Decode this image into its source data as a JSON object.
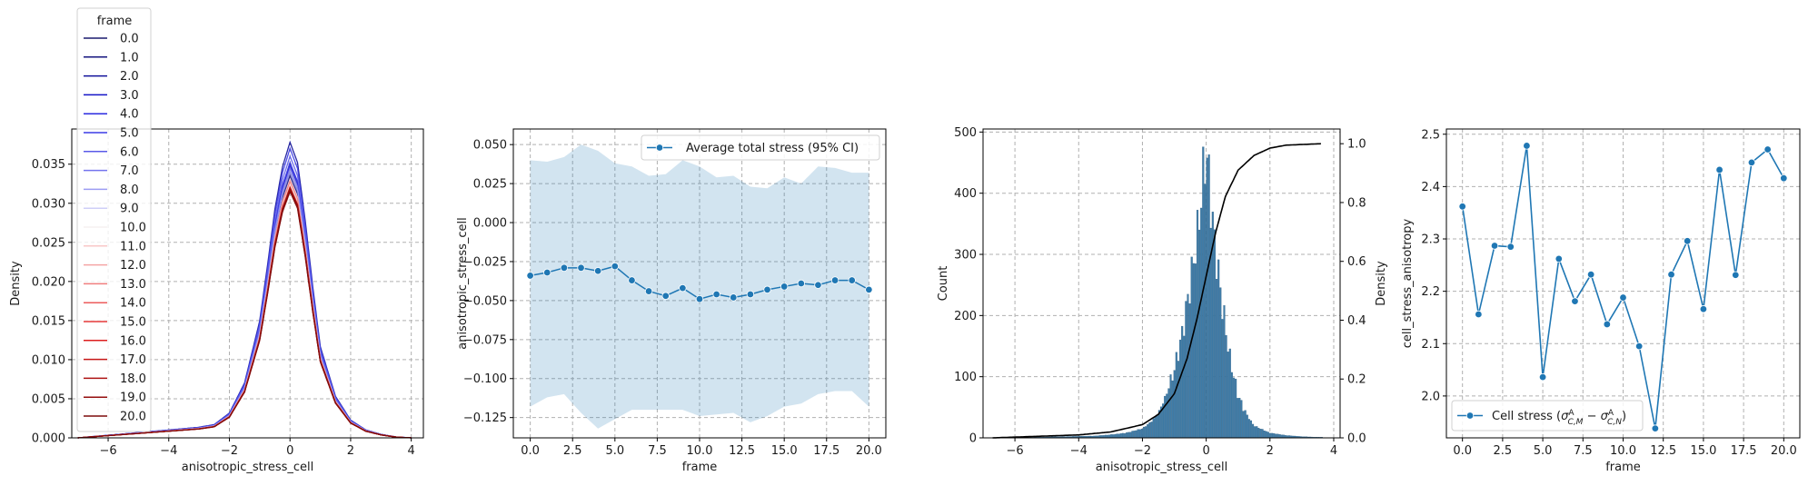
{
  "chart_data": [
    {
      "type": "line",
      "xlabel": "anisotropic_stress_cell",
      "ylabel": "Density",
      "xlim": [
        -7.2,
        4.4
      ],
      "ylim": [
        0,
        0.0395
      ],
      "xticks": [
        -6,
        -4,
        -2,
        0,
        2,
        4
      ],
      "xtick_labels": [
        "−6",
        "−4",
        "−2",
        "0",
        "2",
        "4"
      ],
      "yticks": [
        0,
        0.005,
        0.01,
        0.015,
        0.02,
        0.025,
        0.03,
        0.035
      ],
      "ytick_labels": [
        "0.000",
        "0.005",
        "0.010",
        "0.015",
        "0.020",
        "0.025",
        "0.030",
        "0.035"
      ],
      "grid": true,
      "legend_title": "frame",
      "legend_placement": "upper-left, above axes",
      "density_profile": {
        "x": [
          -7.0,
          -6.0,
          -5.0,
          -4.0,
          -3.0,
          -2.5,
          -2.0,
          -1.5,
          -1.0,
          -0.75,
          -0.5,
          -0.25,
          0.0,
          0.25,
          0.5,
          0.75,
          1.0,
          1.5,
          2.0,
          2.5,
          3.0,
          3.5,
          4.0
        ],
        "y": [
          0.0,
          0.0003,
          0.0006,
          0.0009,
          0.0012,
          0.0015,
          0.0028,
          0.0062,
          0.0132,
          0.0193,
          0.0258,
          0.0306,
          0.0334,
          0.0311,
          0.0246,
          0.0171,
          0.0103,
          0.0047,
          0.002,
          0.0009,
          0.0004,
          0.0001,
          0.0
        ]
      },
      "series": [
        {
          "name": "0.0",
          "color": "#1a1a6e",
          "peak": 0.034
        },
        {
          "name": "1.0",
          "color": "#15157f",
          "peak": 0.0335
        },
        {
          "name": "2.0",
          "color": "#10109a",
          "peak": 0.0378
        },
        {
          "name": "3.0",
          "color": "#1515c8",
          "peak": 0.0348
        },
        {
          "name": "4.0",
          "color": "#2a2ae0",
          "peak": 0.0352
        },
        {
          "name": "5.0",
          "color": "#3b3be6",
          "peak": 0.037
        },
        {
          "name": "6.0",
          "color": "#5a5ae8",
          "peak": 0.036
        },
        {
          "name": "7.0",
          "color": "#7474ee",
          "peak": 0.0345
        },
        {
          "name": "8.0",
          "color": "#9c9cf3",
          "peak": 0.034
        },
        {
          "name": "9.0",
          "color": "#cfcff8",
          "peak": 0.033
        },
        {
          "name": "10.0",
          "color": "#f6f0f0",
          "peak": 0.0325
        },
        {
          "name": "11.0",
          "color": "#f9c7c7",
          "peak": 0.033
        },
        {
          "name": "12.0",
          "color": "#f4a4a4",
          "peak": 0.0322
        },
        {
          "name": "13.0",
          "color": "#f07e7e",
          "peak": 0.0328
        },
        {
          "name": "14.0",
          "color": "#ec5b5b",
          "peak": 0.032
        },
        {
          "name": "15.0",
          "color": "#e63a3a",
          "peak": 0.0318
        },
        {
          "name": "16.0",
          "color": "#dd1f1f",
          "peak": 0.032
        },
        {
          "name": "17.0",
          "color": "#c61616",
          "peak": 0.0316
        },
        {
          "name": "18.0",
          "color": "#ad1111",
          "peak": 0.032
        },
        {
          "name": "19.0",
          "color": "#950e0e",
          "peak": 0.0318
        },
        {
          "name": "20.0",
          "color": "#7d0b0b",
          "peak": 0.0315
        }
      ]
    },
    {
      "type": "line",
      "xlabel": "frame",
      "ylabel": "anisotropic_stress_cell",
      "xlim": [
        -1,
        21
      ],
      "ylim": [
        -0.138,
        0.06
      ],
      "xticks": [
        0,
        2.5,
        5,
        7.5,
        10,
        12.5,
        15,
        17.5,
        20
      ],
      "xtick_labels": [
        "0.0",
        "2.5",
        "5.0",
        "7.5",
        "10.0",
        "12.5",
        "15.0",
        "17.5",
        "20.0"
      ],
      "yticks": [
        -0.125,
        -0.1,
        -0.075,
        -0.05,
        -0.025,
        0.0,
        0.025,
        0.05
      ],
      "ytick_labels": [
        "−0.125",
        "−0.100",
        "−0.075",
        "−0.050",
        "−0.025",
        "0.000",
        "0.025",
        "0.050"
      ],
      "grid": true,
      "legend_placement": "upper-right",
      "series": [
        {
          "name": "Average total stress (95% CI)",
          "color": "#1f77b4",
          "x": [
            0,
            1,
            2,
            3,
            4,
            5,
            6,
            7,
            8,
            9,
            10,
            11,
            12,
            13,
            14,
            15,
            16,
            17,
            18,
            19,
            20
          ],
          "y": [
            -0.034,
            -0.032,
            -0.029,
            -0.029,
            -0.031,
            -0.028,
            -0.037,
            -0.044,
            -0.047,
            -0.042,
            -0.049,
            -0.046,
            -0.048,
            -0.046,
            -0.043,
            -0.041,
            -0.039,
            -0.04,
            -0.037,
            -0.037,
            -0.043
          ],
          "ci_low": [
            -0.118,
            -0.112,
            -0.11,
            -0.122,
            -0.132,
            -0.126,
            -0.12,
            -0.12,
            -0.12,
            -0.12,
            -0.124,
            -0.123,
            -0.122,
            -0.128,
            -0.124,
            -0.118,
            -0.116,
            -0.11,
            -0.108,
            -0.108,
            -0.118
          ],
          "ci_high": [
            0.04,
            0.039,
            0.042,
            0.05,
            0.046,
            0.038,
            0.036,
            0.03,
            0.031,
            0.04,
            0.036,
            0.029,
            0.03,
            0.023,
            0.022,
            0.029,
            0.025,
            0.036,
            0.035,
            0.032,
            0.032
          ]
        }
      ]
    },
    {
      "type": "bar",
      "xlabel": "anisotropic_stress_cell",
      "ylabel": "Count",
      "ylabel_right": "Density",
      "xlim": [
        -7.0,
        4.2
      ],
      "ylim": [
        0,
        505
      ],
      "ylim_right": [
        0,
        1.05
      ],
      "xticks": [
        -6,
        -4,
        -2,
        0,
        2,
        4
      ],
      "xtick_labels": [
        "−6",
        "−4",
        "−2",
        "0",
        "2",
        "4"
      ],
      "yticks": [
        0,
        100,
        200,
        300,
        400,
        500
      ],
      "ytick_labels": [
        "0",
        "100",
        "200",
        "300",
        "400",
        "500"
      ],
      "yticks_right": [
        0,
        0.2,
        0.4,
        0.6,
        0.8,
        1.0
      ],
      "ytick_labels_right": [
        "0.0",
        "0.2",
        "0.4",
        "0.6",
        "0.8",
        "1.0"
      ],
      "grid": true,
      "bar_color": "#3f7ca8",
      "histogram": {
        "x": [
          -6.5,
          -5.5,
          -4.5,
          -3.5,
          -3.0,
          -2.5,
          -2.0,
          -1.75,
          -1.5,
          -1.25,
          -1.0,
          -0.75,
          -0.5,
          -0.25,
          0.0,
          0.25,
          0.5,
          0.75,
          1.0,
          1.25,
          1.5,
          2.0,
          2.5,
          3.0,
          3.5
        ],
        "y": [
          0,
          1,
          2,
          3,
          5,
          8,
          15,
          25,
          40,
          70,
          110,
          170,
          250,
          340,
          475,
          330,
          220,
          130,
          70,
          40,
          20,
          8,
          4,
          2,
          1
        ]
      },
      "cdf_color": "#000000",
      "cdf_points": {
        "x": [
          -6.7,
          -4.0,
          -3.0,
          -2.0,
          -1.5,
          -1.0,
          -0.6,
          -0.3,
          0.0,
          0.3,
          0.6,
          1.0,
          1.5,
          2.0,
          2.5,
          3.6
        ],
        "y": [
          0.0,
          0.01,
          0.02,
          0.045,
          0.08,
          0.15,
          0.27,
          0.4,
          0.55,
          0.7,
          0.82,
          0.91,
          0.96,
          0.985,
          0.995,
          1.0
        ]
      }
    },
    {
      "type": "line",
      "xlabel": "frame",
      "ylabel": "cell_stress_anisotropy",
      "xlim": [
        -1,
        21
      ],
      "ylim": [
        1.92,
        2.51
      ],
      "xticks": [
        0,
        2.5,
        5,
        7.5,
        10,
        12.5,
        15,
        17.5,
        20
      ],
      "xtick_labels": [
        "0.0",
        "2.5",
        "5.0",
        "7.5",
        "10.0",
        "12.5",
        "15.0",
        "17.5",
        "20.0"
      ],
      "yticks": [
        2.0,
        2.1,
        2.2,
        2.3,
        2.4,
        2.5
      ],
      "ytick_labels": [
        "2.0",
        "2.1",
        "2.2",
        "2.3",
        "2.4",
        "2.5"
      ],
      "grid": true,
      "legend_placement": "lower-left",
      "series": [
        {
          "name": "Cell stress (σ^A_{C,M} − σ^A_{C,N})",
          "color": "#1f77b4",
          "x": [
            0,
            1,
            2,
            3,
            4,
            5,
            6,
            7,
            8,
            9,
            10,
            11,
            12,
            13,
            14,
            15,
            16,
            17,
            18,
            19,
            20
          ],
          "y": [
            2.362,
            2.156,
            2.287,
            2.285,
            2.478,
            2.036,
            2.262,
            2.181,
            2.232,
            2.137,
            2.188,
            2.095,
            1.938,
            2.232,
            2.296,
            2.166,
            2.432,
            2.231,
            2.446,
            2.471,
            2.416
          ]
        }
      ]
    }
  ]
}
